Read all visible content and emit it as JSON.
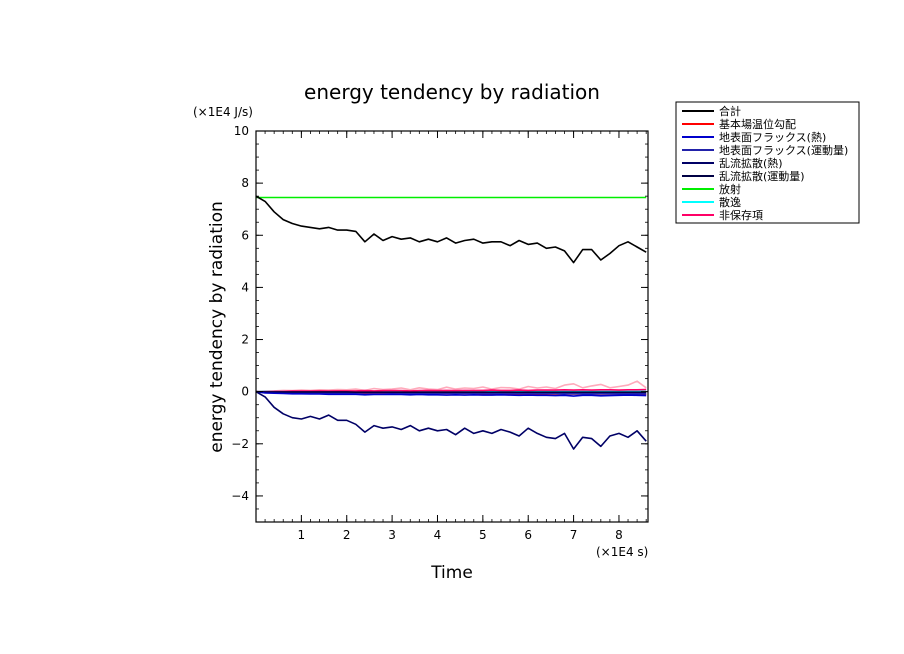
{
  "chart_data": {
    "type": "line",
    "title": "energy tendency by radiation",
    "xlabel": "Time",
    "ylabel": "energy tendency by radiation",
    "x_unit": "(×1E4 s)",
    "y_unit": "(×1E4 J/s)",
    "xlim": [
      0,
      8.64
    ],
    "ylim": [
      -5,
      10
    ],
    "x_ticks": [
      1,
      2,
      3,
      4,
      5,
      6,
      7,
      8
    ],
    "y_ticks": [
      -4,
      -2,
      0,
      2,
      4,
      6,
      8,
      10
    ],
    "legend_position": "right, outside plot",
    "x": [
      0,
      0.2,
      0.4,
      0.6,
      0.8,
      1.0,
      1.2,
      1.4,
      1.6,
      1.8,
      2.0,
      2.2,
      2.4,
      2.6,
      2.8,
      3.0,
      3.2,
      3.4,
      3.6,
      3.8,
      4.0,
      4.2,
      4.4,
      4.6,
      4.8,
      5.0,
      5.2,
      5.4,
      5.6,
      5.8,
      6.0,
      6.2,
      6.4,
      6.6,
      6.8,
      7.0,
      7.2,
      7.4,
      7.6,
      7.8,
      8.0,
      8.2,
      8.4,
      8.6
    ],
    "series": [
      {
        "name": "合計",
        "color": "#000000",
        "values": [
          7.5,
          7.3,
          6.9,
          6.6,
          6.45,
          6.35,
          6.3,
          6.25,
          6.3,
          6.2,
          6.2,
          6.15,
          5.75,
          6.05,
          5.8,
          5.95,
          5.85,
          5.9,
          5.75,
          5.85,
          5.75,
          5.9,
          5.7,
          5.8,
          5.85,
          5.7,
          5.75,
          5.75,
          5.6,
          5.8,
          5.65,
          5.7,
          5.5,
          5.55,
          5.4,
          4.95,
          5.45,
          5.45,
          5.05,
          5.3,
          5.6,
          5.75,
          5.55,
          5.35
        ]
      },
      {
        "name": "基本場温位勾配",
        "color": "#ff0000",
        "values": [
          0,
          -0.02,
          -0.03,
          -0.03,
          -0.04,
          -0.04,
          -0.04,
          -0.05,
          -0.05,
          -0.05,
          -0.05,
          -0.05,
          -0.06,
          -0.06,
          -0.06,
          -0.06,
          -0.06,
          -0.06,
          -0.07,
          -0.07,
          -0.07,
          -0.07,
          -0.07,
          -0.07,
          -0.07,
          -0.08,
          -0.08,
          -0.08,
          -0.08,
          -0.08,
          -0.08,
          -0.08,
          -0.08,
          -0.09,
          -0.09,
          -0.09,
          -0.09,
          -0.09,
          -0.09,
          -0.09,
          -0.09,
          -0.09,
          -0.09,
          -0.1
        ]
      },
      {
        "name": "地表面フラックス(熱)",
        "color": "#0000cc",
        "values": [
          0,
          -0.05,
          -0.06,
          -0.07,
          -0.08,
          -0.08,
          -0.09,
          -0.09,
          -0.1,
          -0.1,
          -0.1,
          -0.1,
          -0.12,
          -0.11,
          -0.11,
          -0.1,
          -0.11,
          -0.12,
          -0.11,
          -0.12,
          -0.12,
          -0.13,
          -0.12,
          -0.13,
          -0.12,
          -0.13,
          -0.13,
          -0.12,
          -0.13,
          -0.14,
          -0.13,
          -0.14,
          -0.14,
          -0.15,
          -0.14,
          -0.17,
          -0.14,
          -0.14,
          -0.16,
          -0.15,
          -0.14,
          -0.13,
          -0.14,
          -0.15
        ]
      },
      {
        "name": "地表面フラックス(運動量)",
        "color": "#2222aa",
        "values": [
          0,
          -0.02,
          -0.03,
          -0.03,
          -0.03,
          -0.04,
          -0.04,
          -0.04,
          -0.04,
          -0.05,
          -0.05,
          -0.05,
          -0.05,
          -0.05,
          -0.05,
          -0.05,
          -0.06,
          -0.06,
          -0.06,
          -0.06,
          -0.06,
          -0.06,
          -0.06,
          -0.06,
          -0.06,
          -0.07,
          -0.07,
          -0.07,
          -0.07,
          -0.07,
          -0.07,
          -0.07,
          -0.07,
          -0.07,
          -0.08,
          -0.08,
          -0.08,
          -0.08,
          -0.08,
          -0.08,
          -0.08,
          -0.08,
          -0.08,
          -0.08
        ]
      },
      {
        "name": "乱流拡散(熱)",
        "color": "#000066",
        "values": [
          0,
          -0.2,
          -0.6,
          -0.85,
          -1.0,
          -1.05,
          -0.95,
          -1.05,
          -0.9,
          -1.1,
          -1.1,
          -1.25,
          -1.55,
          -1.3,
          -1.4,
          -1.35,
          -1.45,
          -1.3,
          -1.5,
          -1.4,
          -1.5,
          -1.45,
          -1.65,
          -1.4,
          -1.6,
          -1.5,
          -1.6,
          -1.45,
          -1.55,
          -1.7,
          -1.4,
          -1.6,
          -1.75,
          -1.8,
          -1.6,
          -2.2,
          -1.75,
          -1.8,
          -2.1,
          -1.7,
          -1.6,
          -1.75,
          -1.5,
          -1.9
        ]
      },
      {
        "name": "乱流拡散(運動量)",
        "color": "#000044",
        "values": [
          0,
          -0.01,
          -0.01,
          -0.01,
          -0.01,
          -0.01,
          -0.01,
          -0.01,
          -0.01,
          -0.01,
          -0.01,
          -0.02,
          -0.02,
          -0.02,
          -0.02,
          -0.02,
          -0.02,
          -0.02,
          -0.02,
          -0.02,
          -0.02,
          -0.02,
          -0.02,
          -0.02,
          -0.02,
          -0.02,
          -0.02,
          -0.02,
          -0.02,
          -0.02,
          -0.02,
          -0.02,
          -0.02,
          -0.02,
          -0.02,
          -0.02,
          -0.02,
          -0.02,
          -0.02,
          -0.02,
          -0.02,
          -0.02,
          -0.02,
          -0.02
        ]
      },
      {
        "name": "放射",
        "color": "#00ee00",
        "values": [
          7.45,
          7.45,
          7.45,
          7.45,
          7.45,
          7.45,
          7.45,
          7.45,
          7.45,
          7.45,
          7.45,
          7.45,
          7.45,
          7.45,
          7.45,
          7.45,
          7.45,
          7.45,
          7.45,
          7.45,
          7.45,
          7.45,
          7.45,
          7.45,
          7.45,
          7.45,
          7.45,
          7.45,
          7.45,
          7.45,
          7.45,
          7.45,
          7.45,
          7.45,
          7.45,
          7.45,
          7.45,
          7.45,
          7.45,
          7.45,
          7.45,
          7.45,
          7.45,
          7.45
        ]
      },
      {
        "name": "散逸",
        "color": "#00ffff",
        "values": [
          0,
          0.01,
          0.01,
          0.01,
          0.01,
          0.01,
          0.01,
          0.01,
          0.01,
          0.01,
          0.01,
          0.01,
          0.01,
          0.01,
          0.01,
          0.01,
          0.01,
          0.01,
          0.01,
          0.01,
          0.01,
          0.01,
          0.01,
          0.01,
          0.01,
          0.01,
          0.01,
          0.01,
          0.01,
          0.01,
          0.01,
          0.01,
          0.01,
          0.01,
          0.01,
          0.01,
          0.01,
          0.01,
          0.01,
          0.01,
          0.01,
          0.01,
          0.01,
          0.01
        ]
      },
      {
        "name": "非保存項",
        "color": "#ff0066",
        "values": [
          0,
          0.0,
          0.01,
          0.01,
          0.02,
          0.02,
          0.02,
          0.03,
          0.02,
          0.03,
          0.03,
          0.03,
          0.04,
          0.03,
          0.04,
          0.04,
          0.04,
          0.03,
          0.04,
          0.05,
          0.04,
          0.05,
          0.04,
          0.05,
          0.05,
          0.05,
          0.06,
          0.05,
          0.05,
          0.06,
          0.05,
          0.06,
          0.06,
          0.06,
          0.07,
          0.06,
          0.07,
          0.06,
          0.07,
          0.07,
          0.06,
          0.07,
          0.07,
          0.08
        ]
      },
      {
        "name": "",
        "color": "#ffaabb",
        "values": [
          0,
          0.02,
          0.03,
          0.05,
          0.04,
          0.06,
          0.05,
          0.07,
          0.06,
          0.08,
          0.07,
          0.1,
          0.05,
          0.12,
          0.08,
          0.1,
          0.14,
          0.07,
          0.15,
          0.1,
          0.08,
          0.17,
          0.1,
          0.14,
          0.12,
          0.18,
          0.1,
          0.16,
          0.15,
          0.1,
          0.2,
          0.14,
          0.18,
          0.12,
          0.25,
          0.3,
          0.15,
          0.22,
          0.28,
          0.15,
          0.2,
          0.25,
          0.4,
          0.15
        ]
      }
    ]
  }
}
